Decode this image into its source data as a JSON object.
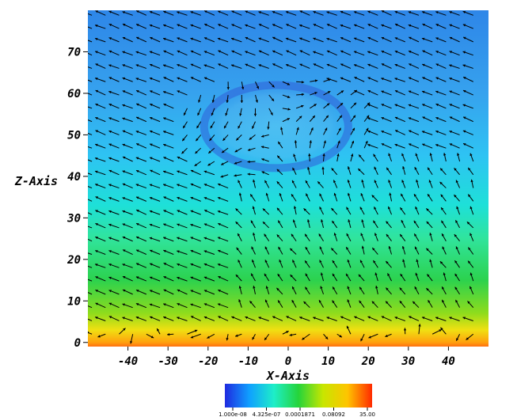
{
  "chart_data": {
    "type": "heatmap",
    "title": "",
    "xlabel": "X-Axis",
    "ylabel": "Z-Axis",
    "xlim": [
      -50,
      50
    ],
    "ylim": [
      -1,
      80
    ],
    "xticks": [
      -40,
      -30,
      -20,
      -10,
      0,
      10,
      20,
      30,
      40
    ],
    "yticks": [
      0,
      10,
      20,
      30,
      40,
      50,
      60,
      70
    ],
    "field": "scalar field colored blue (low) to red (high), with velocity vector overlay",
    "background_flow_direction": "toward upper-left (-x, +z)",
    "features": [
      {
        "name": "bubble",
        "center": [
          -3,
          52
        ],
        "radii": [
          18,
          10
        ],
        "value": "low"
      }
    ],
    "colorbar": {
      "labels": [
        "1.000e-08",
        "4.325e-07",
        "0.0001871",
        "0.08092",
        "35.00"
      ],
      "scale": "log",
      "colors": [
        "#1f2ae0",
        "#0fa0ff",
        "#1eeec8",
        "#25d43a",
        "#c8e600",
        "#ffc400",
        "#ff2a00"
      ]
    },
    "color_stops": [
      {
        "z": 80,
        "color": "#2e86e8"
      },
      {
        "z": 60,
        "color": "#36a2ee"
      },
      {
        "z": 45,
        "color": "#2ec3f3"
      },
      {
        "z": 33,
        "color": "#1ee0d8"
      },
      {
        "z": 25,
        "color": "#30e49c"
      },
      {
        "z": 15,
        "color": "#2cd24e"
      },
      {
        "z": 7,
        "color": "#8fdc1c"
      },
      {
        "z": 3,
        "color": "#f0e012"
      },
      {
        "z": 0,
        "color": "#ffa00e"
      },
      {
        "z": -1,
        "color": "#ff7010"
      }
    ]
  }
}
